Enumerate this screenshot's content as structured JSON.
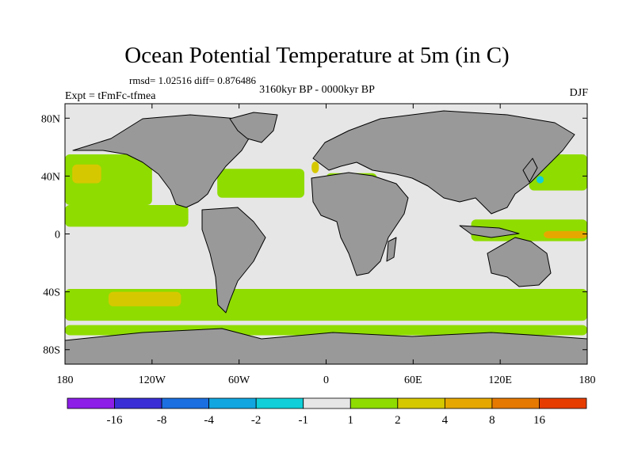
{
  "title": "Ocean Potential Temperature at 5m (in C)",
  "stats_line": "rmsd= 1.02516 diff= 0.876486",
  "experiment": "Expt = tFmFc-tfmea",
  "period": "3160kyr BP - 0000kyr BP",
  "season": "DJF",
  "chart_data": {
    "type": "heatmap",
    "title": "Ocean Potential Temperature at 5m (in C)",
    "variable": "Ocean potential temperature difference at 5m",
    "units": "C",
    "projection": "cylindrical equidistant",
    "xlim": [
      -180,
      180
    ],
    "ylim": [
      -90,
      90
    ],
    "x_ticks": [
      {
        "value": -180,
        "label": "180"
      },
      {
        "value": -120,
        "label": "120W"
      },
      {
        "value": -60,
        "label": "60W"
      },
      {
        "value": 0,
        "label": "0"
      },
      {
        "value": 60,
        "label": "60E"
      },
      {
        "value": 120,
        "label": "120E"
      },
      {
        "value": 180,
        "label": "180"
      }
    ],
    "y_ticks": [
      {
        "value": 80,
        "label": "80N"
      },
      {
        "value": 40,
        "label": "40N"
      },
      {
        "value": 0,
        "label": "0"
      },
      {
        "value": -40,
        "label": "40S"
      },
      {
        "value": -80,
        "label": "80S"
      }
    ],
    "colorbar": {
      "labels": [
        "-16",
        "-8",
        "-4",
        "-2",
        "-1",
        "1",
        "2",
        "4",
        "8",
        "16"
      ],
      "colors": [
        "#8c1ee8",
        "#3a2fd6",
        "#1b6fe0",
        "#12a6e0",
        "#10cfd8",
        "#e6e6e6",
        "#8fdc00",
        "#d6c800",
        "#e6a800",
        "#e67a00",
        "#e63c00"
      ]
    },
    "land_color": "#999999",
    "anomaly_regions": [
      {
        "name": "North Pacific",
        "lon": [
          -180,
          -120
        ],
        "lat": [
          20,
          55
        ],
        "category": "1 to 2",
        "color": "#8fdc00"
      },
      {
        "name": "North Pacific core",
        "lon": [
          -175,
          -155
        ],
        "lat": [
          35,
          48
        ],
        "category": "2 to 4",
        "color": "#d6c800"
      },
      {
        "name": "Tropical Pacific",
        "lon": [
          -180,
          -95
        ],
        "lat": [
          5,
          20
        ],
        "category": "1 to 2",
        "color": "#8fdc00"
      },
      {
        "name": "North Atlantic",
        "lon": [
          -75,
          -15
        ],
        "lat": [
          25,
          45
        ],
        "category": "1 to 2",
        "color": "#8fdc00"
      },
      {
        "name": "Bay of Biscay",
        "lon": [
          -10,
          -5
        ],
        "lat": [
          42,
          50
        ],
        "category": "2 to 4",
        "color": "#d6c800"
      },
      {
        "name": "Mediterranean",
        "lon": [
          0,
          35
        ],
        "lat": [
          31,
          42
        ],
        "category": "1 to 2",
        "color": "#8fdc00"
      },
      {
        "name": "Northwest Pacific",
        "lon": [
          140,
          180
        ],
        "lat": [
          30,
          55
        ],
        "category": "1 to 2",
        "color": "#8fdc00"
      },
      {
        "name": "Equatorial Pacific",
        "lon": [
          100,
          180
        ],
        "lat": [
          -5,
          10
        ],
        "category": "1 to 2",
        "color": "#8fdc00"
      },
      {
        "name": "Equatorial Pacific core",
        "lon": [
          150,
          180
        ],
        "lat": [
          -3,
          2
        ],
        "category": "4 to 8",
        "color": "#e6a800"
      },
      {
        "name": "Southern Ocean band",
        "lon": [
          -180,
          180
        ],
        "lat": [
          -60,
          -38
        ],
        "category": "1 to 2",
        "color": "#8fdc00"
      },
      {
        "name": "South Pacific core",
        "lon": [
          -150,
          -100
        ],
        "lat": [
          -50,
          -40
        ],
        "category": "2 to 4",
        "color": "#d6c800"
      },
      {
        "name": "Southern Ocean outer band",
        "lon": [
          -180,
          180
        ],
        "lat": [
          -70,
          -63
        ],
        "category": "1 to 2",
        "color": "#8fdc00"
      },
      {
        "name": "Northwest Pacific cold spot",
        "lon": [
          145,
          150
        ],
        "lat": [
          35,
          40
        ],
        "category": "-2 to -1",
        "color": "#10cfd8"
      }
    ]
  }
}
